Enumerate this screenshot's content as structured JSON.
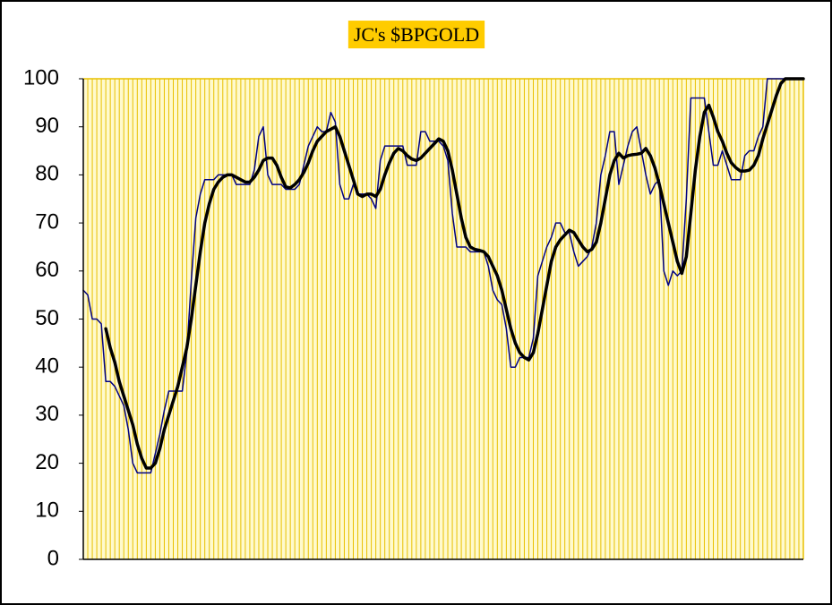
{
  "chart_data": {
    "type": "line",
    "title": "JC's $BPGOLD",
    "categories": [
      null,
      null,
      null,
      null,
      null,
      null,
      null,
      null,
      null,
      null,
      null,
      null,
      null,
      null,
      null,
      null,
      null,
      null,
      null,
      null,
      null,
      null,
      null,
      null,
      null,
      null,
      null,
      null,
      null,
      null,
      null,
      null,
      null,
      null,
      null,
      null,
      null,
      null,
      null,
      null,
      null,
      null,
      null,
      null,
      null,
      null,
      null,
      null,
      null,
      null,
      null,
      null,
      null,
      null,
      null,
      null,
      null,
      null,
      null,
      null,
      null,
      null,
      null,
      null,
      null,
      null,
      null,
      null,
      null,
      null,
      null,
      null,
      null,
      null,
      null,
      null,
      null,
      null,
      null,
      null,
      null,
      null,
      null,
      null,
      null,
      null,
      null,
      null,
      null,
      null,
      null,
      null,
      null,
      null,
      null,
      null,
      null,
      null,
      null,
      null,
      null,
      null,
      null,
      null,
      null,
      null,
      null,
      null,
      null,
      null,
      null,
      null,
      null,
      null,
      null,
      null,
      null,
      null,
      null,
      null,
      null,
      null,
      null,
      null,
      null,
      null,
      null,
      null,
      null,
      null,
      null,
      null,
      null,
      null,
      null,
      null,
      null,
      null,
      null,
      null,
      null,
      null,
      null,
      null,
      null,
      null,
      null,
      null,
      null,
      null,
      null,
      null,
      null,
      null,
      null,
      null,
      null,
      null,
      null,
      null,
      null
    ],
    "series": [
      {
        "color": "#000080",
        "width": 1.5,
        "values": [
          56,
          55,
          50,
          50,
          49,
          37,
          37,
          36,
          34,
          32,
          27,
          20,
          18,
          18,
          18,
          18,
          22,
          26,
          31,
          35,
          35,
          35,
          35,
          43,
          58,
          71,
          76,
          79,
          79,
          79,
          80,
          80,
          80,
          80,
          78,
          78,
          78,
          78,
          81,
          88,
          90,
          80,
          78,
          78,
          78,
          77,
          77,
          77,
          78,
          82,
          86,
          88,
          90,
          89,
          89,
          93,
          91,
          78,
          75,
          75,
          78,
          76,
          76,
          76,
          75,
          73,
          83,
          86,
          86,
          86,
          86,
          86,
          82,
          82,
          82,
          89,
          89,
          87,
          87,
          87,
          86,
          83,
          72,
          65,
          65,
          65,
          64,
          64,
          64,
          64,
          61,
          56,
          54,
          53,
          48,
          40,
          40,
          42,
          42,
          42,
          46,
          59,
          62,
          65,
          67,
          70,
          70,
          68,
          68,
          64,
          61,
          62,
          63,
          65,
          70,
          80,
          84,
          89,
          89,
          78,
          82,
          86,
          89,
          90,
          85,
          80,
          76,
          78,
          79,
          60,
          57,
          60,
          59,
          60,
          75,
          96,
          96,
          96,
          96,
          89,
          82,
          82,
          85,
          82,
          79,
          79,
          79,
          84,
          85,
          85,
          88,
          90,
          100,
          100,
          100,
          100,
          100,
          100,
          100,
          100,
          100
        ]
      },
      {
        "color": "#000000",
        "width": 3.5,
        "values": [
          null,
          null,
          null,
          null,
          null,
          48,
          44,
          41,
          37,
          34,
          31,
          28,
          24,
          21,
          19,
          19,
          20,
          23,
          27,
          30,
          33,
          36,
          40,
          44,
          50,
          57,
          64,
          70,
          74,
          77,
          78.5,
          79.5,
          80,
          80,
          79.5,
          79,
          78.5,
          78.5,
          79.5,
          81,
          83,
          83.5,
          83.5,
          82,
          79.5,
          77.5,
          77.3,
          78,
          79,
          80.5,
          82.5,
          85,
          87,
          88,
          89,
          89.5,
          90,
          88,
          85,
          82,
          79,
          76,
          75.5,
          76,
          76,
          75.5,
          77,
          80,
          82.5,
          84.5,
          85.5,
          85,
          84,
          83.3,
          83,
          83.5,
          84.5,
          85.5,
          86.5,
          87.5,
          87,
          85,
          81,
          76,
          71,
          67,
          65,
          64.5,
          64.3,
          64,
          63,
          61,
          59,
          56,
          52,
          48,
          45,
          43,
          42,
          41.5,
          43,
          47,
          52,
          57,
          62,
          65,
          66.5,
          67.5,
          68.5,
          68,
          66.5,
          65,
          64,
          64.5,
          66,
          70,
          75,
          80,
          83,
          84.5,
          83.5,
          84,
          84.2,
          84.3,
          84.5,
          85.5,
          84,
          81.5,
          78,
          74,
          70,
          66,
          62,
          59.5,
          63,
          72,
          81,
          88,
          93,
          94.5,
          92,
          89,
          87,
          84.5,
          82.5,
          81.5,
          80.8,
          80.8,
          81,
          82,
          84,
          87.5,
          90.5,
          93.5,
          96.5,
          99,
          100,
          100,
          100,
          100,
          100
        ]
      }
    ],
    "ylim": [
      0,
      100
    ],
    "yticks": [
      0,
      10,
      20,
      30,
      40,
      50,
      60,
      70,
      80,
      90,
      100
    ],
    "grid": "x",
    "background": "#fffacd",
    "grid_color": "#e8c000"
  }
}
